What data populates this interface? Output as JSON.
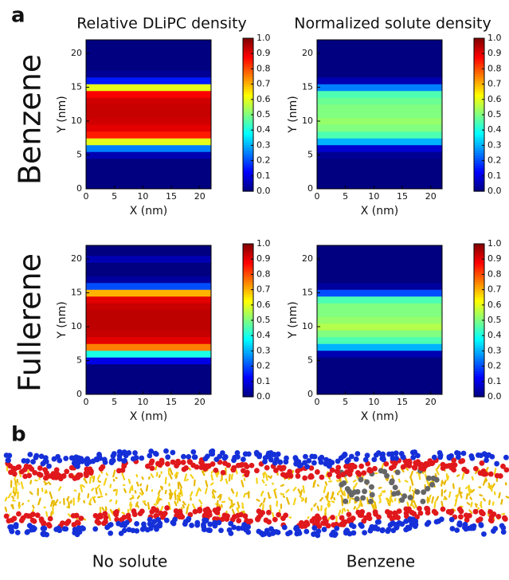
{
  "figure": {
    "panel_a": "a",
    "panel_b": "b",
    "rows": [
      "Benzene",
      "Fullerene"
    ],
    "images": [
      {
        "caption": "No solute"
      },
      {
        "caption": "Benzene"
      }
    ]
  },
  "chart_data": [
    {
      "type": "heatmap",
      "title": "Relative DLiPC density",
      "xlabel": "X (nm)",
      "ylabel": "Y (nm)",
      "y": [
        0,
        1,
        2,
        3,
        4,
        5,
        6,
        7,
        8,
        9,
        10,
        11,
        12,
        13,
        14,
        15,
        16,
        17,
        18,
        19,
        20,
        21,
        22
      ],
      "values": [
        0,
        0,
        0,
        0,
        0,
        0.05,
        0.25,
        0.6,
        0.85,
        0.9,
        0.92,
        0.93,
        0.93,
        0.92,
        0.88,
        0.6,
        0.15,
        0.02,
        0,
        0,
        0,
        0,
        0
      ],
      "xlim": [
        0,
        22
      ],
      "ylim": [
        0,
        22
      ],
      "xticks": [
        0,
        5,
        10,
        15,
        20
      ],
      "yticks": [
        0,
        5,
        10,
        15,
        20
      ],
      "clim": [
        0,
        1
      ],
      "cticks": [
        {
          "value": 0,
          "label": "0.0"
        },
        0.1,
        0.2,
        0.3,
        0.4,
        0.5,
        0.6,
        0.7,
        0.8,
        0.9,
        {
          "value": 1,
          "label": "1.0"
        }
      ]
    },
    {
      "type": "heatmap",
      "title": "Normalized solute density",
      "xlabel": "X (nm)",
      "ylabel": "Y (nm)",
      "y": [
        0,
        1,
        2,
        3,
        4,
        5,
        6,
        7,
        8,
        9,
        10,
        11,
        12,
        13,
        14,
        15,
        16,
        17,
        18,
        19,
        20,
        21,
        22
      ],
      "values": [
        0,
        0,
        0,
        0,
        0,
        0.02,
        0.08,
        0.3,
        0.45,
        0.5,
        0.52,
        0.5,
        0.5,
        0.48,
        0.45,
        0.25,
        0.05,
        0,
        0,
        0,
        0,
        0,
        0
      ],
      "xlim": [
        0,
        22
      ],
      "ylim": [
        0,
        22
      ],
      "xticks": [
        0,
        5,
        10,
        15,
        20
      ],
      "yticks": [
        0,
        5,
        10,
        15,
        20
      ],
      "clim": [
        0,
        1
      ],
      "cticks": [
        {
          "value": 0,
          "label": "0.0"
        },
        0.1,
        0.2,
        0.3,
        0.4,
        0.5,
        0.6,
        0.7,
        0.8,
        0.9,
        {
          "value": 1,
          "label": "1.0"
        }
      ]
    },
    {
      "type": "heatmap",
      "xlabel": "X (nm)",
      "ylabel": "Y (nm)",
      "y": [
        0,
        1,
        2,
        3,
        4,
        5,
        6,
        7,
        8,
        9,
        10,
        11,
        12,
        13,
        14,
        15,
        16,
        17,
        18,
        19,
        20,
        21,
        22
      ],
      "values": [
        0,
        0,
        0,
        0,
        0,
        0.1,
        0.4,
        0.75,
        0.9,
        0.93,
        0.94,
        0.94,
        0.94,
        0.93,
        0.9,
        0.7,
        0.2,
        0.03,
        0,
        0,
        0.05,
        0,
        0
      ],
      "xlim": [
        0,
        22
      ],
      "ylim": [
        0,
        22
      ],
      "xticks": [
        0,
        5,
        10,
        15,
        20
      ],
      "yticks": [
        0,
        5,
        10,
        15,
        20
      ],
      "clim": [
        0,
        1
      ],
      "cticks": [
        {
          "value": 0,
          "label": "0.0"
        },
        0.1,
        0.2,
        0.3,
        0.4,
        0.5,
        0.6,
        0.7,
        0.8,
        0.9,
        {
          "value": 1,
          "label": "1.0"
        }
      ]
    },
    {
      "type": "heatmap",
      "xlabel": "X (nm)",
      "ylabel": "Y (nm)",
      "y": [
        0,
        1,
        2,
        3,
        4,
        5,
        6,
        7,
        8,
        9,
        10,
        11,
        12,
        13,
        14,
        15,
        16,
        17,
        18,
        19,
        20,
        21,
        22
      ],
      "values": [
        0,
        0,
        0,
        0,
        0,
        0,
        0.05,
        0.3,
        0.45,
        0.5,
        0.55,
        0.52,
        0.5,
        0.5,
        0.45,
        0.2,
        0.03,
        0,
        0,
        0,
        0,
        0,
        0
      ],
      "xlim": [
        0,
        22
      ],
      "ylim": [
        0,
        22
      ],
      "xticks": [
        0,
        5,
        10,
        15,
        20
      ],
      "yticks": [
        0,
        5,
        10,
        15,
        20
      ],
      "clim": [
        0,
        1
      ],
      "cticks": [
        {
          "value": 0,
          "label": "0.0"
        },
        0.1,
        0.2,
        0.3,
        0.4,
        0.5,
        0.6,
        0.7,
        0.8,
        0.9,
        {
          "value": 1,
          "label": "1.0"
        }
      ]
    }
  ]
}
